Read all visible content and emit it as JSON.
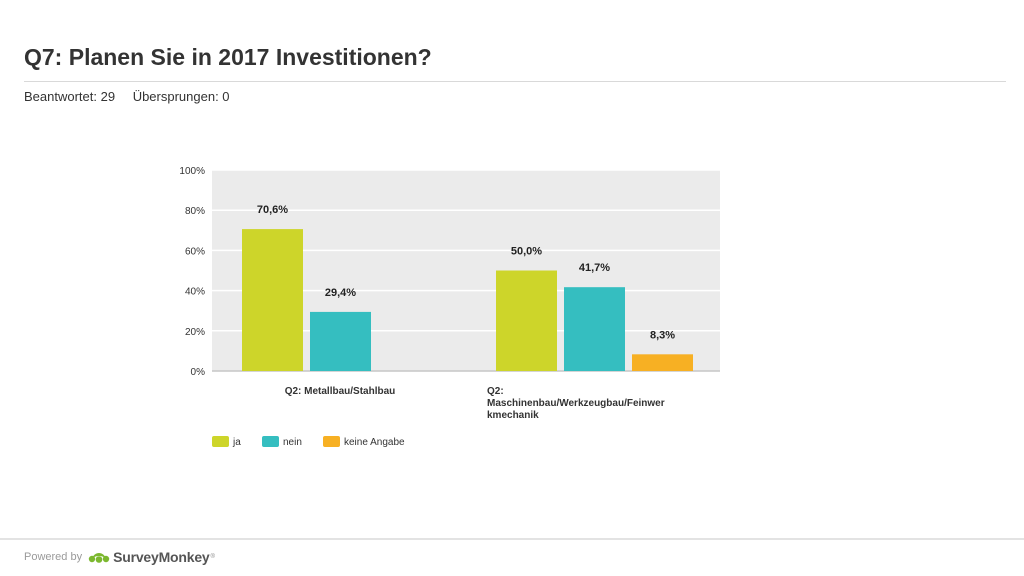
{
  "header": {
    "title": "Q7: Planen Sie in 2017 Investitionen?",
    "answered": "Beantwortet: 29",
    "skipped": "Übersprungen: 0"
  },
  "chart_data": {
    "type": "bar",
    "categories": [
      [
        "Q2: Metallbau/Stahlbau"
      ],
      [
        "Q2:",
        "Maschinenbau/Werkzeugbau/Feinwer",
        "kmechanik"
      ]
    ],
    "series": [
      {
        "name": "ja",
        "color": "#cdd52a",
        "values": [
          70.6,
          50.0
        ],
        "labels": [
          "70,6%",
          "50,0%"
        ]
      },
      {
        "name": "nein",
        "color": "#35bec0",
        "values": [
          29.4,
          41.7
        ],
        "labels": [
          "29,4%",
          "41,7%"
        ]
      },
      {
        "name": "keine Angabe",
        "color": "#f7b023",
        "values": [
          0,
          8.3
        ],
        "labels": [
          "",
          "8,3%"
        ]
      }
    ],
    "yticks": [
      "0%",
      "20%",
      "40%",
      "60%",
      "80%",
      "100%"
    ],
    "ylim": [
      0,
      100
    ],
    "grid": true,
    "plot_background": "#ebebeb",
    "legend_position": "bottom-left"
  },
  "footer": {
    "powered_by": "Powered by",
    "brand": "SurveyMonkey",
    "trademark": "®"
  }
}
